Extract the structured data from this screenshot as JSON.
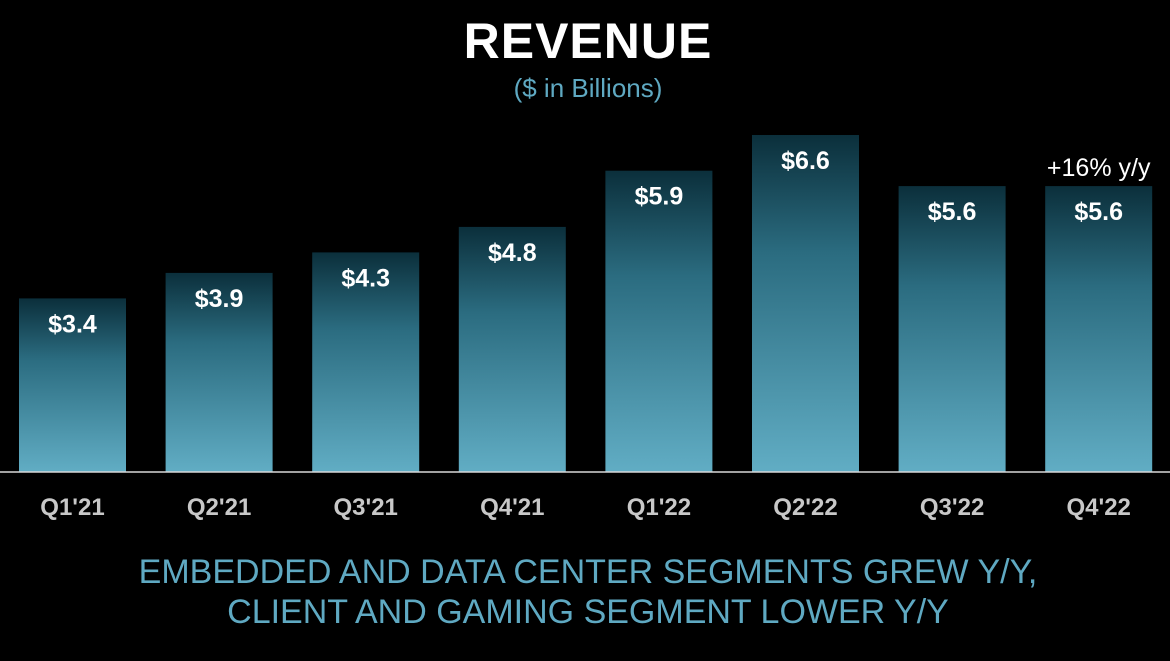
{
  "title": "REVENUE",
  "subtitle": "($ in Billions)",
  "footer": {
    "line1": "EMBEDDED AND DATA CENTER SEGMENTS GREW Y/Y,",
    "line2": "CLIENT AND GAMING SEGMENT LOWER Y/Y"
  },
  "colors": {
    "background": "#000000",
    "bar_top": "#0b2f3b",
    "bar_bottom": "#61adc4",
    "accent_text": "#5fa9c2",
    "label_text": "#ffffff",
    "axis_label_text": "#c8c8c8"
  },
  "chart_data": {
    "type": "bar",
    "title": "REVENUE",
    "subtitle": "($ in Billions)",
    "categories": [
      "Q1'21",
      "Q2'21",
      "Q3'21",
      "Q4'21",
      "Q1'22",
      "Q2'22",
      "Q3'22",
      "Q4'22"
    ],
    "values": [
      3.4,
      3.9,
      4.3,
      4.8,
      5.9,
      6.6,
      5.6,
      5.6
    ],
    "data_labels": [
      "$3.4",
      "$3.9",
      "$4.3",
      "$4.8",
      "$5.9",
      "$6.6",
      "$5.6",
      "$5.6"
    ],
    "annotations": [
      {
        "category": "Q4'22",
        "text": "+16% y/y"
      }
    ],
    "ylim": [
      0,
      6.6
    ],
    "grid": false,
    "legend": "none",
    "xlabel": "",
    "ylabel": ""
  }
}
